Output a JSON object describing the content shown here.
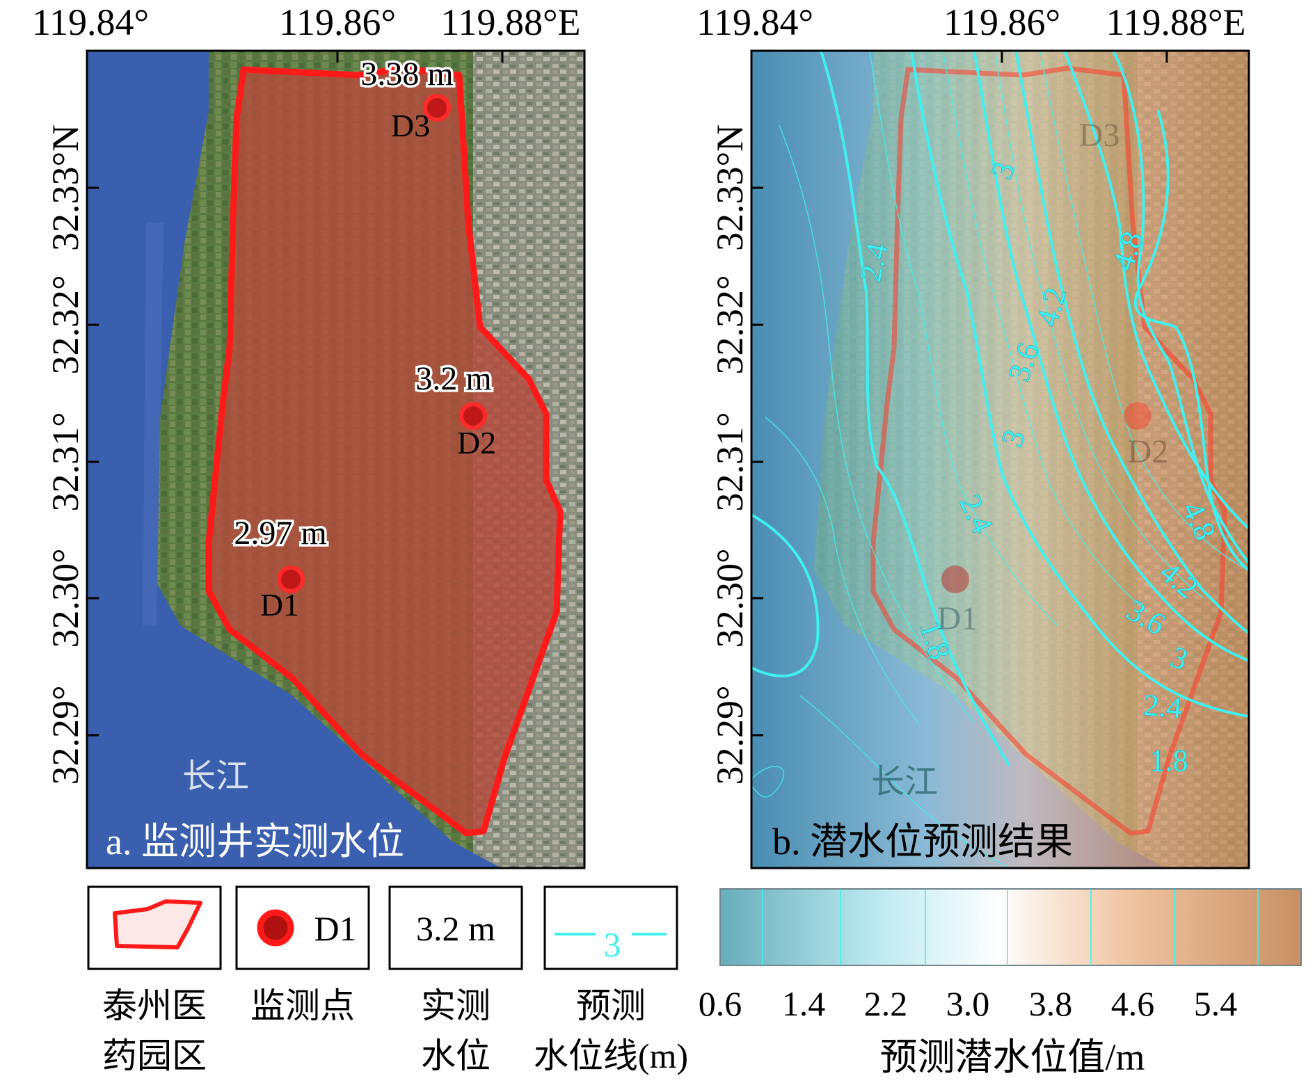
{
  "panel_a": {
    "caption": "a. 监测井实测水位",
    "lon_labels": [
      "119.84°",
      "119.86°",
      "119.88°E"
    ],
    "lat_labels": [
      "32.29°",
      "32.30°",
      "32.31°",
      "32.32°",
      "32.33°N"
    ],
    "river_label": "长江",
    "wells": [
      {
        "id": "D1",
        "level": "2.97 m"
      },
      {
        "id": "D2",
        "level": "3.2 m"
      },
      {
        "id": "D3",
        "level": "3.38 m"
      }
    ]
  },
  "panel_b": {
    "caption": "b. 潜水位预测结果",
    "lon_labels": [
      "119.84°",
      "119.86°",
      "119.88°E"
    ],
    "lat_labels": [
      "32.29°",
      "32.30°",
      "32.31°",
      "32.32°",
      "32.33°N"
    ],
    "river_label": "长江",
    "wells": [
      "D1",
      "D2",
      "D3"
    ],
    "contour_labels": [
      "2.4",
      "3",
      "4.8",
      "4.2",
      "3.6",
      "3",
      "2.4",
      "1.8",
      "4.8",
      "4.2",
      "3.6",
      "3",
      "2.4",
      "1.8"
    ]
  },
  "legend": {
    "park": {
      "label_line1": "泰州医",
      "label_line2": "药园区"
    },
    "well": {
      "symbol_text": "D1",
      "label": "监测点"
    },
    "measured": {
      "symbol_text": "3.2 m",
      "label_line1": "实测",
      "label_line2": "水位"
    },
    "contour": {
      "symbol_text": "3",
      "label_line1": "预测",
      "label_line2": "水位线(m)"
    },
    "colorbar": {
      "ticks": [
        "0.6",
        "1.4",
        "2.2",
        "3.0",
        "3.8",
        "4.6",
        "5.4"
      ],
      "title": "预测潜水位值/m",
      "colors": [
        "#5fa9b8",
        "#ffffff",
        "#c68a5c"
      ]
    }
  },
  "colors": {
    "boundary": "#ff1a1a",
    "contour": "#40f0f0",
    "river": "#3a5fae"
  }
}
